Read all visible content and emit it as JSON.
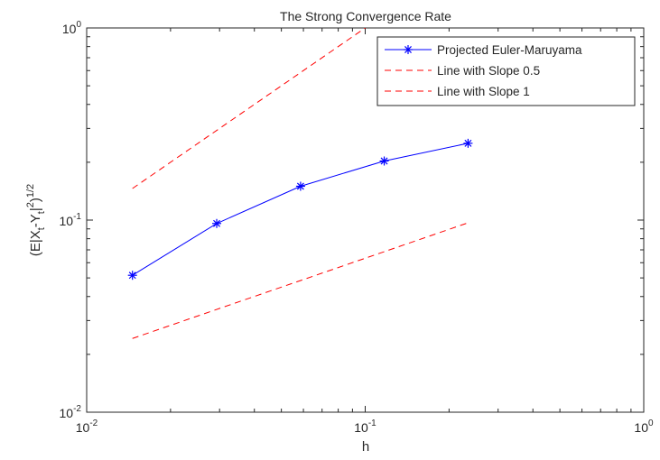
{
  "chart_data": {
    "type": "line",
    "title": "The Strong Convergence Rate",
    "xlabel": "h",
    "ylabel": "(E|X_t-Y_t|^2)^(1/2)",
    "xscale": "log",
    "yscale": "log",
    "xlim": [
      0.01,
      1
    ],
    "ylim": [
      0.01,
      1
    ],
    "xticks": [
      {
        "value": 0.01,
        "base": "10",
        "exp": "-2"
      },
      {
        "value": 0.1,
        "base": "10",
        "exp": "-1"
      },
      {
        "value": 1,
        "base": "10",
        "exp": "0"
      }
    ],
    "yticks": [
      {
        "value": 0.01,
        "base": "10",
        "exp": "-2"
      },
      {
        "value": 0.1,
        "base": "10",
        "exp": "-1"
      },
      {
        "value": 1,
        "base": "10",
        "exp": "0"
      }
    ],
    "grid": false,
    "legend_position": "top-right",
    "series": [
      {
        "name": "Projected Euler-Maruyama",
        "color": "#0000ff",
        "style": "solid",
        "marker": "asterisk",
        "x": [
          0.0146,
          0.0293,
          0.0586,
          0.117,
          0.234
        ],
        "y": [
          0.0516,
          0.096,
          0.15,
          0.203,
          0.251
        ]
      },
      {
        "name": "Line with Slope 0.5",
        "color": "#ff0000",
        "style": "dashed",
        "marker": "none",
        "x": [
          0.0146,
          0.234
        ],
        "y": [
          0.0242,
          0.0968
        ]
      },
      {
        "name": "Line with Slope 1",
        "color": "#ff0000",
        "style": "dashed",
        "marker": "none",
        "x": [
          0.0146,
          0.234
        ],
        "y": [
          0.146,
          2.34
        ]
      }
    ]
  }
}
